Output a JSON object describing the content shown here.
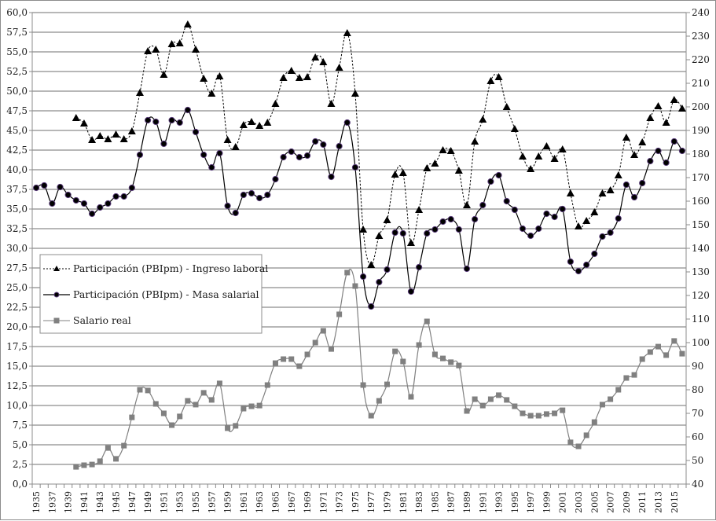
{
  "chart_data": {
    "type": "line",
    "title": "",
    "xlabel": "",
    "ylabel": "",
    "y2label": "",
    "grid": true,
    "legend_position": "inside-left-middle",
    "x": [
      1935,
      1936,
      1937,
      1938,
      1939,
      1940,
      1941,
      1942,
      1943,
      1944,
      1945,
      1946,
      1947,
      1948,
      1949,
      1950,
      1951,
      1952,
      1953,
      1954,
      1955,
      1956,
      1957,
      1958,
      1959,
      1960,
      1961,
      1962,
      1963,
      1964,
      1965,
      1966,
      1967,
      1968,
      1969,
      1970,
      1971,
      1972,
      1973,
      1974,
      1975,
      1976,
      1977,
      1978,
      1979,
      1980,
      1981,
      1982,
      1983,
      1984,
      1985,
      1986,
      1987,
      1988,
      1989,
      1990,
      1991,
      1992,
      1993,
      1994,
      1995,
      1996,
      1997,
      1998,
      1999,
      2000,
      2001,
      2002,
      2003,
      2004,
      2005,
      2006,
      2007,
      2008,
      2009,
      2010,
      2011,
      2012,
      2013,
      2014,
      2015,
      2016
    ],
    "x_tick_labels": [
      "1935",
      "1937",
      "1939",
      "1941",
      "1943",
      "1945",
      "1947",
      "1949",
      "1951",
      "1953",
      "1955",
      "1957",
      "1959",
      "1961",
      "1963",
      "1965",
      "1967",
      "1969",
      "1971",
      "1973",
      "1975",
      "1977",
      "1979",
      "1981",
      "1983",
      "1985",
      "1987",
      "1989",
      "1991",
      "1993",
      "1995",
      "1997",
      "1999",
      "2001",
      "2003",
      "2005",
      "2007",
      "2009",
      "2011",
      "2013",
      "2015"
    ],
    "y_left": {
      "range": [
        0,
        60
      ],
      "step": 2.5,
      "tick_labels": [
        "0,0",
        "2,5",
        "5,0",
        "7,5",
        "10,0",
        "12,5",
        "15,0",
        "17,5",
        "20,0",
        "22,5",
        "25,0",
        "27,5",
        "30,0",
        "32,5",
        "35,0",
        "37,5",
        "40,0",
        "42,5",
        "45,0",
        "47,5",
        "50,0",
        "52,5",
        "55,0",
        "57,5",
        "60,0"
      ]
    },
    "y_right": {
      "range": [
        40,
        240
      ],
      "step": 10,
      "tick_labels": [
        "40",
        "50",
        "60",
        "70",
        "80",
        "90",
        "100",
        "110",
        "120",
        "130",
        "140",
        "150",
        "160",
        "170",
        "180",
        "190",
        "200",
        "210",
        "220",
        "230",
        "240"
      ]
    },
    "series": [
      {
        "name": "Participación (PBIpm) - Ingreso laboral",
        "axis": "left",
        "style": "dashed",
        "marker": "triangle",
        "color": "#000000",
        "values": [
          null,
          null,
          null,
          null,
          null,
          46.6,
          45.9,
          43.8,
          44.3,
          43.9,
          44.5,
          43.9,
          44.9,
          49.8,
          55.1,
          55.3,
          52.1,
          56.0,
          56.1,
          58.5,
          55.3,
          51.6,
          49.7,
          51.9,
          43.8,
          42.9,
          45.7,
          46.1,
          45.6,
          46.0,
          48.4,
          51.7,
          52.6,
          51.7,
          51.8,
          54.3,
          53.7,
          48.4,
          53.0,
          57.4,
          49.7,
          32.4,
          27.9,
          31.6,
          33.6,
          39.4,
          39.6,
          30.7,
          34.9,
          40.2,
          40.8,
          42.5,
          42.4,
          39.9,
          35.5,
          43.6,
          46.4,
          51.3,
          51.8,
          48.0,
          45.2,
          41.7,
          40.1,
          41.7,
          43.0,
          41.4,
          42.6,
          37.0,
          32.8,
          33.5,
          34.6,
          37.0,
          37.4,
          39.3,
          44.1,
          41.9,
          43.5,
          46.6,
          48.1,
          46.0,
          48.9,
          47.8
        ]
      },
      {
        "name": "Participación (PBIpm) - Masa salarial",
        "axis": "left",
        "style": "solid",
        "marker": "circle",
        "color": "#000000",
        "values": [
          37.7,
          38.0,
          35.7,
          37.8,
          36.8,
          36.1,
          35.7,
          34.4,
          35.2,
          35.7,
          36.6,
          36.6,
          37.7,
          41.9,
          46.3,
          46.1,
          43.3,
          46.3,
          46.0,
          47.6,
          44.8,
          41.9,
          40.3,
          42.1,
          35.4,
          34.5,
          36.8,
          37.0,
          36.4,
          36.8,
          38.8,
          41.6,
          42.3,
          41.6,
          41.8,
          43.6,
          43.2,
          39.1,
          43.0,
          46.0,
          40.3,
          26.4,
          22.6,
          25.7,
          27.3,
          32.0,
          31.9,
          24.5,
          27.6,
          31.9,
          32.4,
          33.4,
          33.7,
          32.4,
          27.4,
          33.7,
          35.5,
          38.5,
          39.3,
          36.0,
          34.9,
          32.5,
          31.6,
          32.5,
          34.4,
          34.0,
          35.0,
          28.3,
          27.1,
          27.9,
          29.3,
          31.5,
          32.0,
          33.8,
          38.1,
          36.5,
          38.3,
          41.1,
          42.4,
          40.9,
          43.6,
          42.4
        ]
      },
      {
        "name": "Salario real",
        "axis": "right",
        "style": "solid",
        "marker": "square",
        "color": "#808080",
        "values": [
          null,
          null,
          null,
          null,
          null,
          47.3,
          48.0,
          48.3,
          49.7,
          55.3,
          50.7,
          56.3,
          68.3,
          80.0,
          79.7,
          74.0,
          70.0,
          65.0,
          68.7,
          75.3,
          73.7,
          78.7,
          75.7,
          82.7,
          63.7,
          64.7,
          72.0,
          73.0,
          73.3,
          82.0,
          91.3,
          93.0,
          93.0,
          90.0,
          95.0,
          100.0,
          105.0,
          97.3,
          112.0,
          129.7,
          124.0,
          82.0,
          69.0,
          75.3,
          82.3,
          96.3,
          92.0,
          77.0,
          99.0,
          109.0,
          95.0,
          93.3,
          91.7,
          90.3,
          71.0,
          76.0,
          73.3,
          76.0,
          77.7,
          75.7,
          73.0,
          70.0,
          69.0,
          69.0,
          69.7,
          70.0,
          71.3,
          57.7,
          56.0,
          60.7,
          66.3,
          73.7,
          76.0,
          80.0,
          85.0,
          86.3,
          93.0,
          96.0,
          98.3,
          94.7,
          100.7,
          95.3
        ]
      }
    ]
  },
  "legend": {
    "items": [
      {
        "label": "Participación (PBIpm) - Ingreso laboral"
      },
      {
        "label": "Participación (PBIpm) - Masa salarial"
      },
      {
        "label": "Salario real"
      }
    ]
  },
  "colors": {
    "grid": "#8c8c8c",
    "axis": "#8c8c8c",
    "series_black": "#000000",
    "series_gray": "#808080",
    "marker_outline": "#5a3d7a"
  }
}
